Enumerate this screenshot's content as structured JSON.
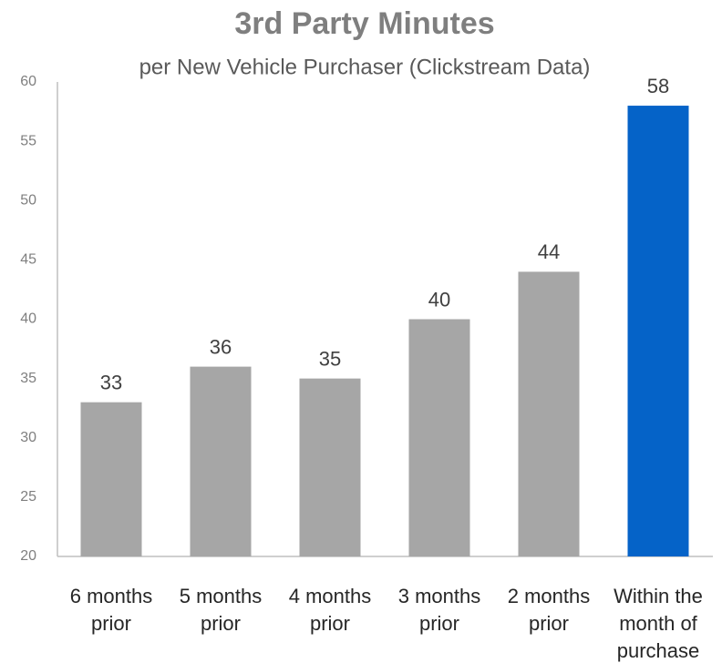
{
  "chart_data": {
    "type": "bar",
    "title": "3rd Party Minutes",
    "subtitle": "per New Vehicle Purchaser (Clickstream Data)",
    "categories": [
      "6 months prior",
      "5 months prior",
      "4 months prior",
      "3 months prior",
      "2 months prior",
      "Within the month of purchase"
    ],
    "values": [
      33,
      36,
      35,
      40,
      44,
      58
    ],
    "colors": [
      "#a6a6a6",
      "#a6a6a6",
      "#a6a6a6",
      "#a6a6a6",
      "#a6a6a6",
      "#0563c8"
    ],
    "ylim": [
      20,
      60
    ],
    "yticks": [
      20,
      25,
      30,
      35,
      40,
      45,
      50,
      55,
      60
    ],
    "grid": false
  }
}
